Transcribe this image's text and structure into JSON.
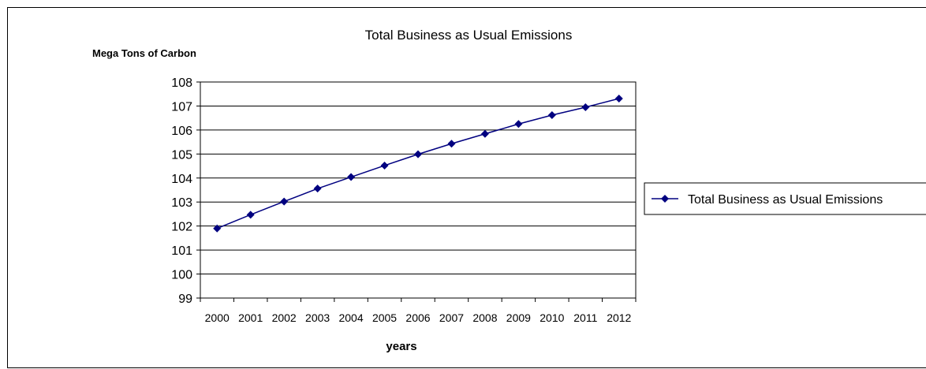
{
  "chart_data": {
    "type": "line",
    "title": "Total Business as Usual Emissions",
    "ylabel": "Mega Tons of Carbon",
    "xlabel": "years",
    "categories": [
      "2000",
      "2001",
      "2002",
      "2003",
      "2004",
      "2005",
      "2006",
      "2007",
      "2008",
      "2009",
      "2010",
      "2011",
      "2012"
    ],
    "series": [
      {
        "name": "Total Business as Usual Emissions",
        "values": [
          101.9,
          102.47,
          103.02,
          103.56,
          104.04,
          104.52,
          104.99,
          105.43,
          105.84,
          106.25,
          106.62,
          106.95,
          107.31
        ]
      }
    ],
    "ylim": [
      99,
      108
    ],
    "yticks": [
      99,
      100,
      101,
      102,
      103,
      104,
      105,
      106,
      107,
      108
    ],
    "grid": "horizontal",
    "legend_position": "right",
    "line_color": "#000080"
  }
}
